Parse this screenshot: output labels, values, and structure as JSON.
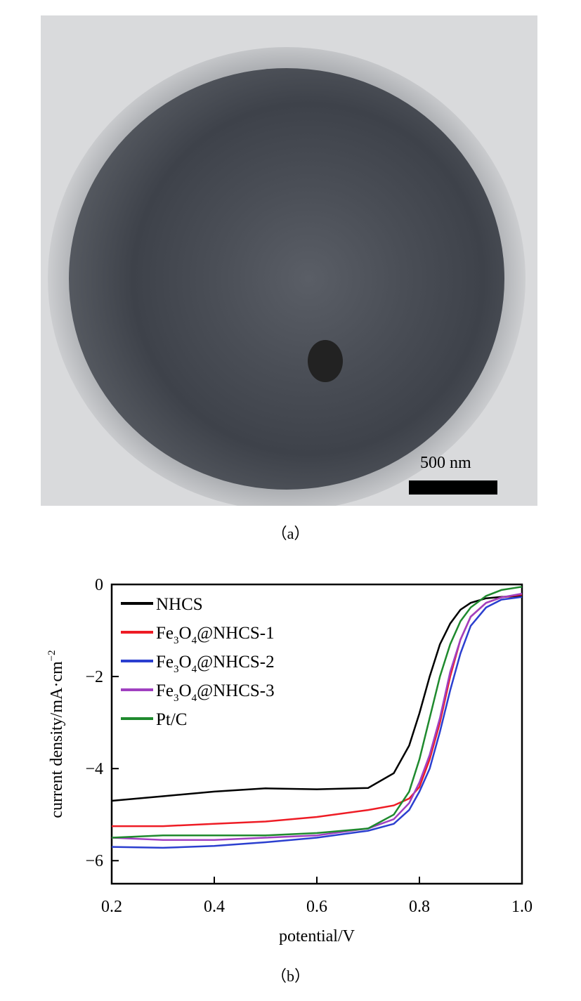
{
  "panel_a": {
    "caption": "（a）",
    "scale_bar": "500 nm"
  },
  "panel_b": {
    "caption": "（b）"
  },
  "chart_data": {
    "type": "line",
    "xlabel": "potential/V",
    "ylabel": "current density/mA·cm",
    "ylabel_sup": "−2",
    "xlim": [
      0.2,
      1.0
    ],
    "ylim": [
      -6.5,
      0
    ],
    "xticks": [
      "0.2",
      "0.4",
      "0.6",
      "0.8",
      "1.0"
    ],
    "yticks": [
      "0",
      "−2",
      "−4",
      "−6"
    ],
    "grid": false,
    "legend_position": "top-left",
    "x": [
      0.2,
      0.3,
      0.4,
      0.5,
      0.6,
      0.7,
      0.75,
      0.78,
      0.8,
      0.82,
      0.84,
      0.86,
      0.88,
      0.9,
      0.93,
      0.96,
      1.0
    ],
    "series": [
      {
        "name": "NHCS",
        "label_parts": [
          "NHCS"
        ],
        "color": "#000000",
        "values": [
          -4.7,
          -4.6,
          -4.5,
          -4.43,
          -4.45,
          -4.42,
          -4.1,
          -3.5,
          -2.8,
          -2.0,
          -1.3,
          -0.85,
          -0.55,
          -0.4,
          -0.3,
          -0.27,
          -0.25
        ]
      },
      {
        "name": "Fe3O4@NHCS-1",
        "label_parts": [
          "Fe",
          "3",
          "O",
          "4",
          "@NHCS-1"
        ],
        "color": "#ee1c25",
        "values": [
          -5.25,
          -5.25,
          -5.2,
          -5.15,
          -5.05,
          -4.9,
          -4.8,
          -4.65,
          -4.4,
          -3.8,
          -3.0,
          -2.0,
          -1.2,
          -0.7,
          -0.4,
          -0.28,
          -0.22
        ]
      },
      {
        "name": "Fe3O4@NHCS-2",
        "label_parts": [
          "Fe",
          "3",
          "O",
          "4",
          "@NHCS-2"
        ],
        "color": "#2b3fcf",
        "values": [
          -5.7,
          -5.72,
          -5.68,
          -5.6,
          -5.5,
          -5.35,
          -5.2,
          -4.9,
          -4.5,
          -4.0,
          -3.2,
          -2.3,
          -1.5,
          -0.9,
          -0.5,
          -0.33,
          -0.27
        ]
      },
      {
        "name": "Fe3O4@NHCS-3",
        "label_parts": [
          "Fe",
          "3",
          "O",
          "4",
          "@NHCS-3"
        ],
        "color": "#a040c0",
        "values": [
          -5.5,
          -5.55,
          -5.55,
          -5.5,
          -5.45,
          -5.3,
          -5.1,
          -4.75,
          -4.3,
          -3.7,
          -2.9,
          -1.9,
          -1.2,
          -0.7,
          -0.4,
          -0.28,
          -0.2
        ]
      },
      {
        "name": "Pt/C",
        "label_parts": [
          "Pt/C"
        ],
        "color": "#1f8a2e",
        "values": [
          -5.5,
          -5.45,
          -5.45,
          -5.45,
          -5.4,
          -5.3,
          -5.0,
          -4.5,
          -3.8,
          -2.9,
          -2.0,
          -1.3,
          -0.8,
          -0.5,
          -0.25,
          -0.12,
          -0.05
        ]
      }
    ]
  }
}
